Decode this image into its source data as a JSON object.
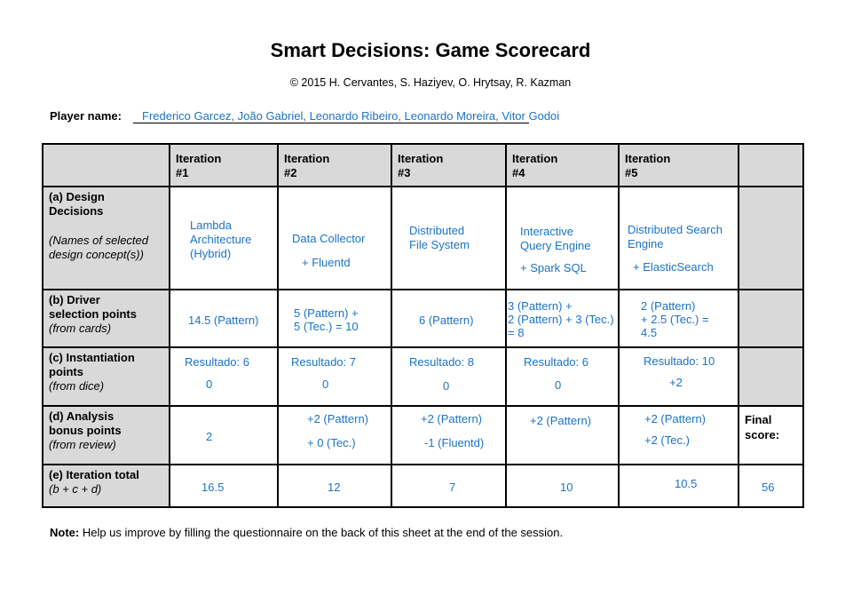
{
  "title": "Smart Decisions: Game Scorecard",
  "copyright": "© 2015 H. Cervantes, S. Haziyev, O. Hrytsay, R. Kazman",
  "player": {
    "label": "Player name:",
    "value": "Frederico Garcez, João Gabriel, Leonardo Ribeiro, Leonardo Moreira, Vitor Godoi"
  },
  "headers": {
    "it1": [
      "Iteration",
      "#1"
    ],
    "it2": [
      "Iteration",
      "#2"
    ],
    "it3": [
      "Iteration",
      "#3"
    ],
    "it4": [
      "Iteration",
      "#4"
    ],
    "it5": [
      "Iteration",
      "#5"
    ]
  },
  "rows": {
    "a": {
      "title": [
        "(a) Design",
        "Decisions"
      ],
      "sub": [
        "(Names of selected",
        "design concept(s))"
      ]
    },
    "b": {
      "title": [
        "(b) Driver",
        "selection points"
      ],
      "sub": [
        "(from cards)"
      ]
    },
    "c": {
      "title": [
        "(c) Instantiation",
        "points"
      ],
      "sub": [
        "(from dice)"
      ]
    },
    "d": {
      "title": [
        "(d) Analysis",
        "bonus points"
      ],
      "sub": [
        "(from review)"
      ]
    },
    "e": {
      "title": [
        "(e) Iteration total"
      ],
      "sub": [
        "(b + c + d)"
      ]
    }
  },
  "cells": {
    "a1": [
      "Lambda",
      "Architecture",
      "(Hybrid)"
    ],
    "a2": [
      "Data Collector",
      "+ Fluentd"
    ],
    "a3": [
      "Distributed",
      "File System"
    ],
    "a4": [
      "Interactive",
      "Query Engine",
      "+ Spark SQL"
    ],
    "a5": [
      "Distributed Search",
      "Engine",
      "+ ElasticSearch"
    ],
    "b1": "14.5 (Pattern)",
    "b2": [
      "5 (Pattern) +",
      "5 (Tec.) = 10"
    ],
    "b3": "6 (Pattern)",
    "b4": [
      "3 (Pattern) +",
      "2 (Pattern) + 3 (Tec.)",
      "= 8"
    ],
    "b5": [
      "2 (Pattern)",
      "+ 2.5 (Tec.) =",
      "4.5"
    ],
    "c1": [
      "Resultado: 6",
      "0"
    ],
    "c2": [
      "Resultado: 7",
      "0"
    ],
    "c3": [
      "Resultado: 8",
      "0"
    ],
    "c4": [
      "Resultado: 6",
      "0"
    ],
    "c5": [
      "Resultado: 10",
      "+2"
    ],
    "d1": "2",
    "d2": [
      "+2 (Pattern)",
      "+ 0 (Tec.)"
    ],
    "d3": [
      "+2 (Pattern)",
      "-1 (Fluentd)"
    ],
    "d4": "+2 (Pattern)",
    "d5": [
      "+2 (Pattern)",
      "+2 (Tec.)"
    ],
    "final_label": [
      "Final",
      "score:"
    ],
    "e1": "16.5",
    "e2": "12",
    "e3": "7",
    "e4": "10",
    "e5": "10.5",
    "final_score": "56"
  },
  "note": {
    "label": "Note:",
    "text": " Help us improve by filling the questionnaire on the back of this sheet at the end of the session."
  },
  "colors": {
    "link_blue": "#1a73c8",
    "header_gray": "#d9d9d9"
  }
}
